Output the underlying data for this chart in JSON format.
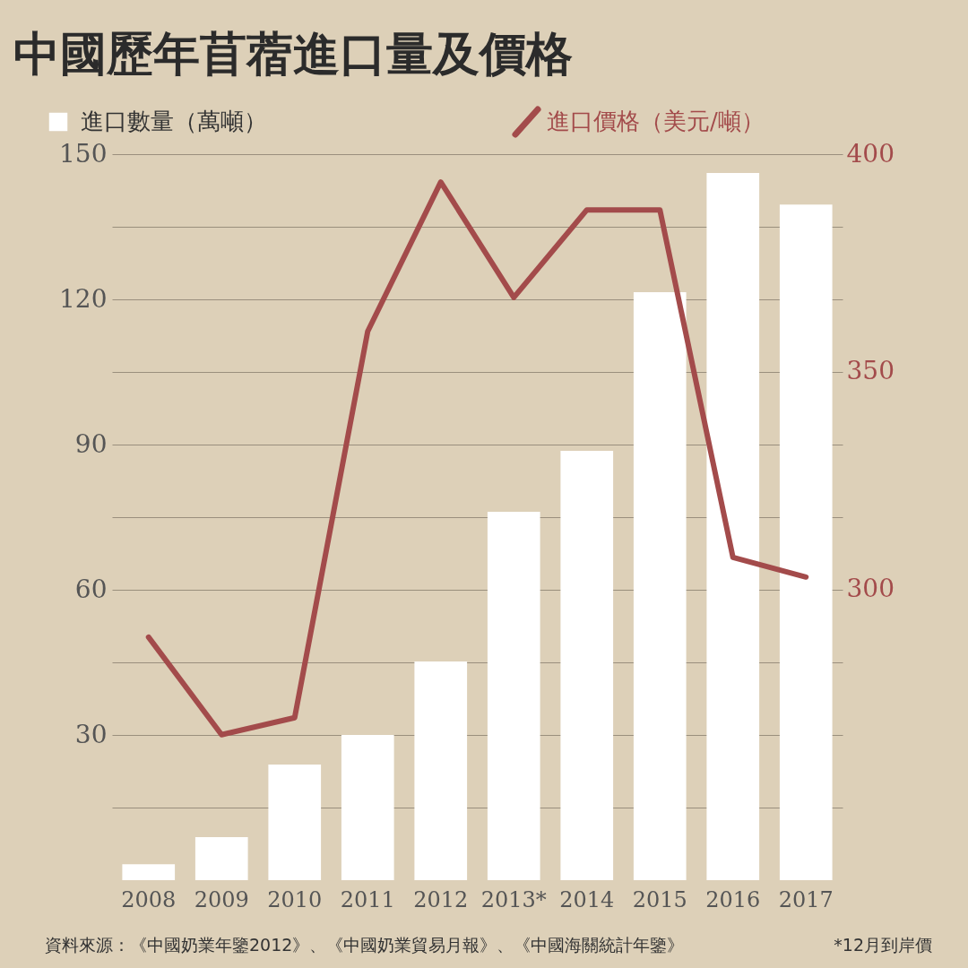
{
  "chart_data": {
    "type": "bar",
    "title": "中國歷年苜蓿進口量及價格",
    "categories": [
      "2008",
      "2009",
      "2010",
      "2011",
      "2012",
      "2013*",
      "2014",
      "2015",
      "2016",
      "2017"
    ],
    "series": [
      {
        "name": "進口數量（萬噸）",
        "color": "#ffffff",
        "values": [
          3.3,
          8.9,
          23.9,
          30,
          45.2,
          76.1,
          88.7,
          121.5,
          146.1,
          139.6
        ]
      },
      {
        "name": "進口價格（美元/噸）",
        "type": "line",
        "axis": "y2",
        "color": "#a34b4b",
        "values": [
          289.1,
          266.7,
          270.6,
          359.3,
          393.6,
          367.1,
          387.2,
          387.2,
          307.4,
          302.9
        ]
      }
    ],
    "ylim": [
      0,
      150
    ],
    "yticks": [
      {
        "value": 15,
        "label": null
      },
      30,
      {
        "value": 45,
        "label": null
      },
      60,
      {
        "value": 75,
        "label": null
      },
      90,
      {
        "value": 105,
        "label": null
      },
      120,
      {
        "value": 135,
        "label": null
      },
      150
    ],
    "y2lim": [
      233.3,
      400
    ],
    "y2ticks": [
      300,
      350,
      400
    ],
    "grid": "y",
    "legend": "top",
    "marker": "none",
    "line_style": "solid",
    "annotations": [
      "資料來源：《中國奶業年鑒2012》、《中國奶業貿易月報》、《中國海關統計年鑒》",
      "*12月到岸價"
    ]
  }
}
